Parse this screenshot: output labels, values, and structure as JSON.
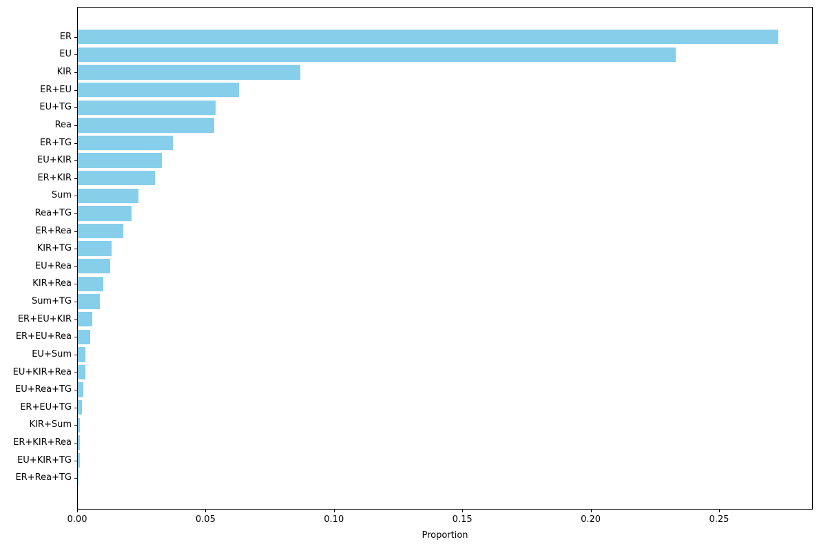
{
  "chart_data": {
    "type": "bar",
    "orientation": "horizontal",
    "title": "",
    "xlabel": "Proportion",
    "ylabel": "",
    "legend": "none",
    "grid": false,
    "bar_color": "#87CEEB",
    "axis_color": "#000000",
    "xlim": [
      0,
      0.2865
    ],
    "xticks": [
      0.0,
      0.05,
      0.1,
      0.15,
      0.2,
      0.25
    ],
    "xtick_labels": [
      "0.00",
      "0.05",
      "0.10",
      "0.15",
      "0.20",
      "0.25"
    ],
    "categories": [
      "ER",
      "EU",
      "KIR",
      "ER+EU",
      "EU+TG",
      "Rea",
      "ER+TG",
      "EU+KIR",
      "ER+KIR",
      "Sum",
      "Rea+TG",
      "ER+Rea",
      "KIR+TG",
      "EU+Rea",
      "KIR+Rea",
      "Sum+TG",
      "ER+EU+KIR",
      "ER+EU+Rea",
      "EU+Sum",
      "EU+KIR+Rea",
      "EU+Rea+TG",
      "ER+EU+TG",
      "KIR+Sum",
      "ER+KIR+Rea",
      "EU+KIR+TG",
      "ER+Rea+TG"
    ],
    "values": [
      0.273,
      0.233,
      0.087,
      0.063,
      0.054,
      0.0535,
      0.0373,
      0.033,
      0.0303,
      0.0239,
      0.0212,
      0.018,
      0.0134,
      0.0128,
      0.0101,
      0.0088,
      0.0059,
      0.0052,
      0.0032,
      0.0031,
      0.0024,
      0.0019,
      0.0012,
      0.0011,
      0.001,
      0.0006
    ]
  }
}
